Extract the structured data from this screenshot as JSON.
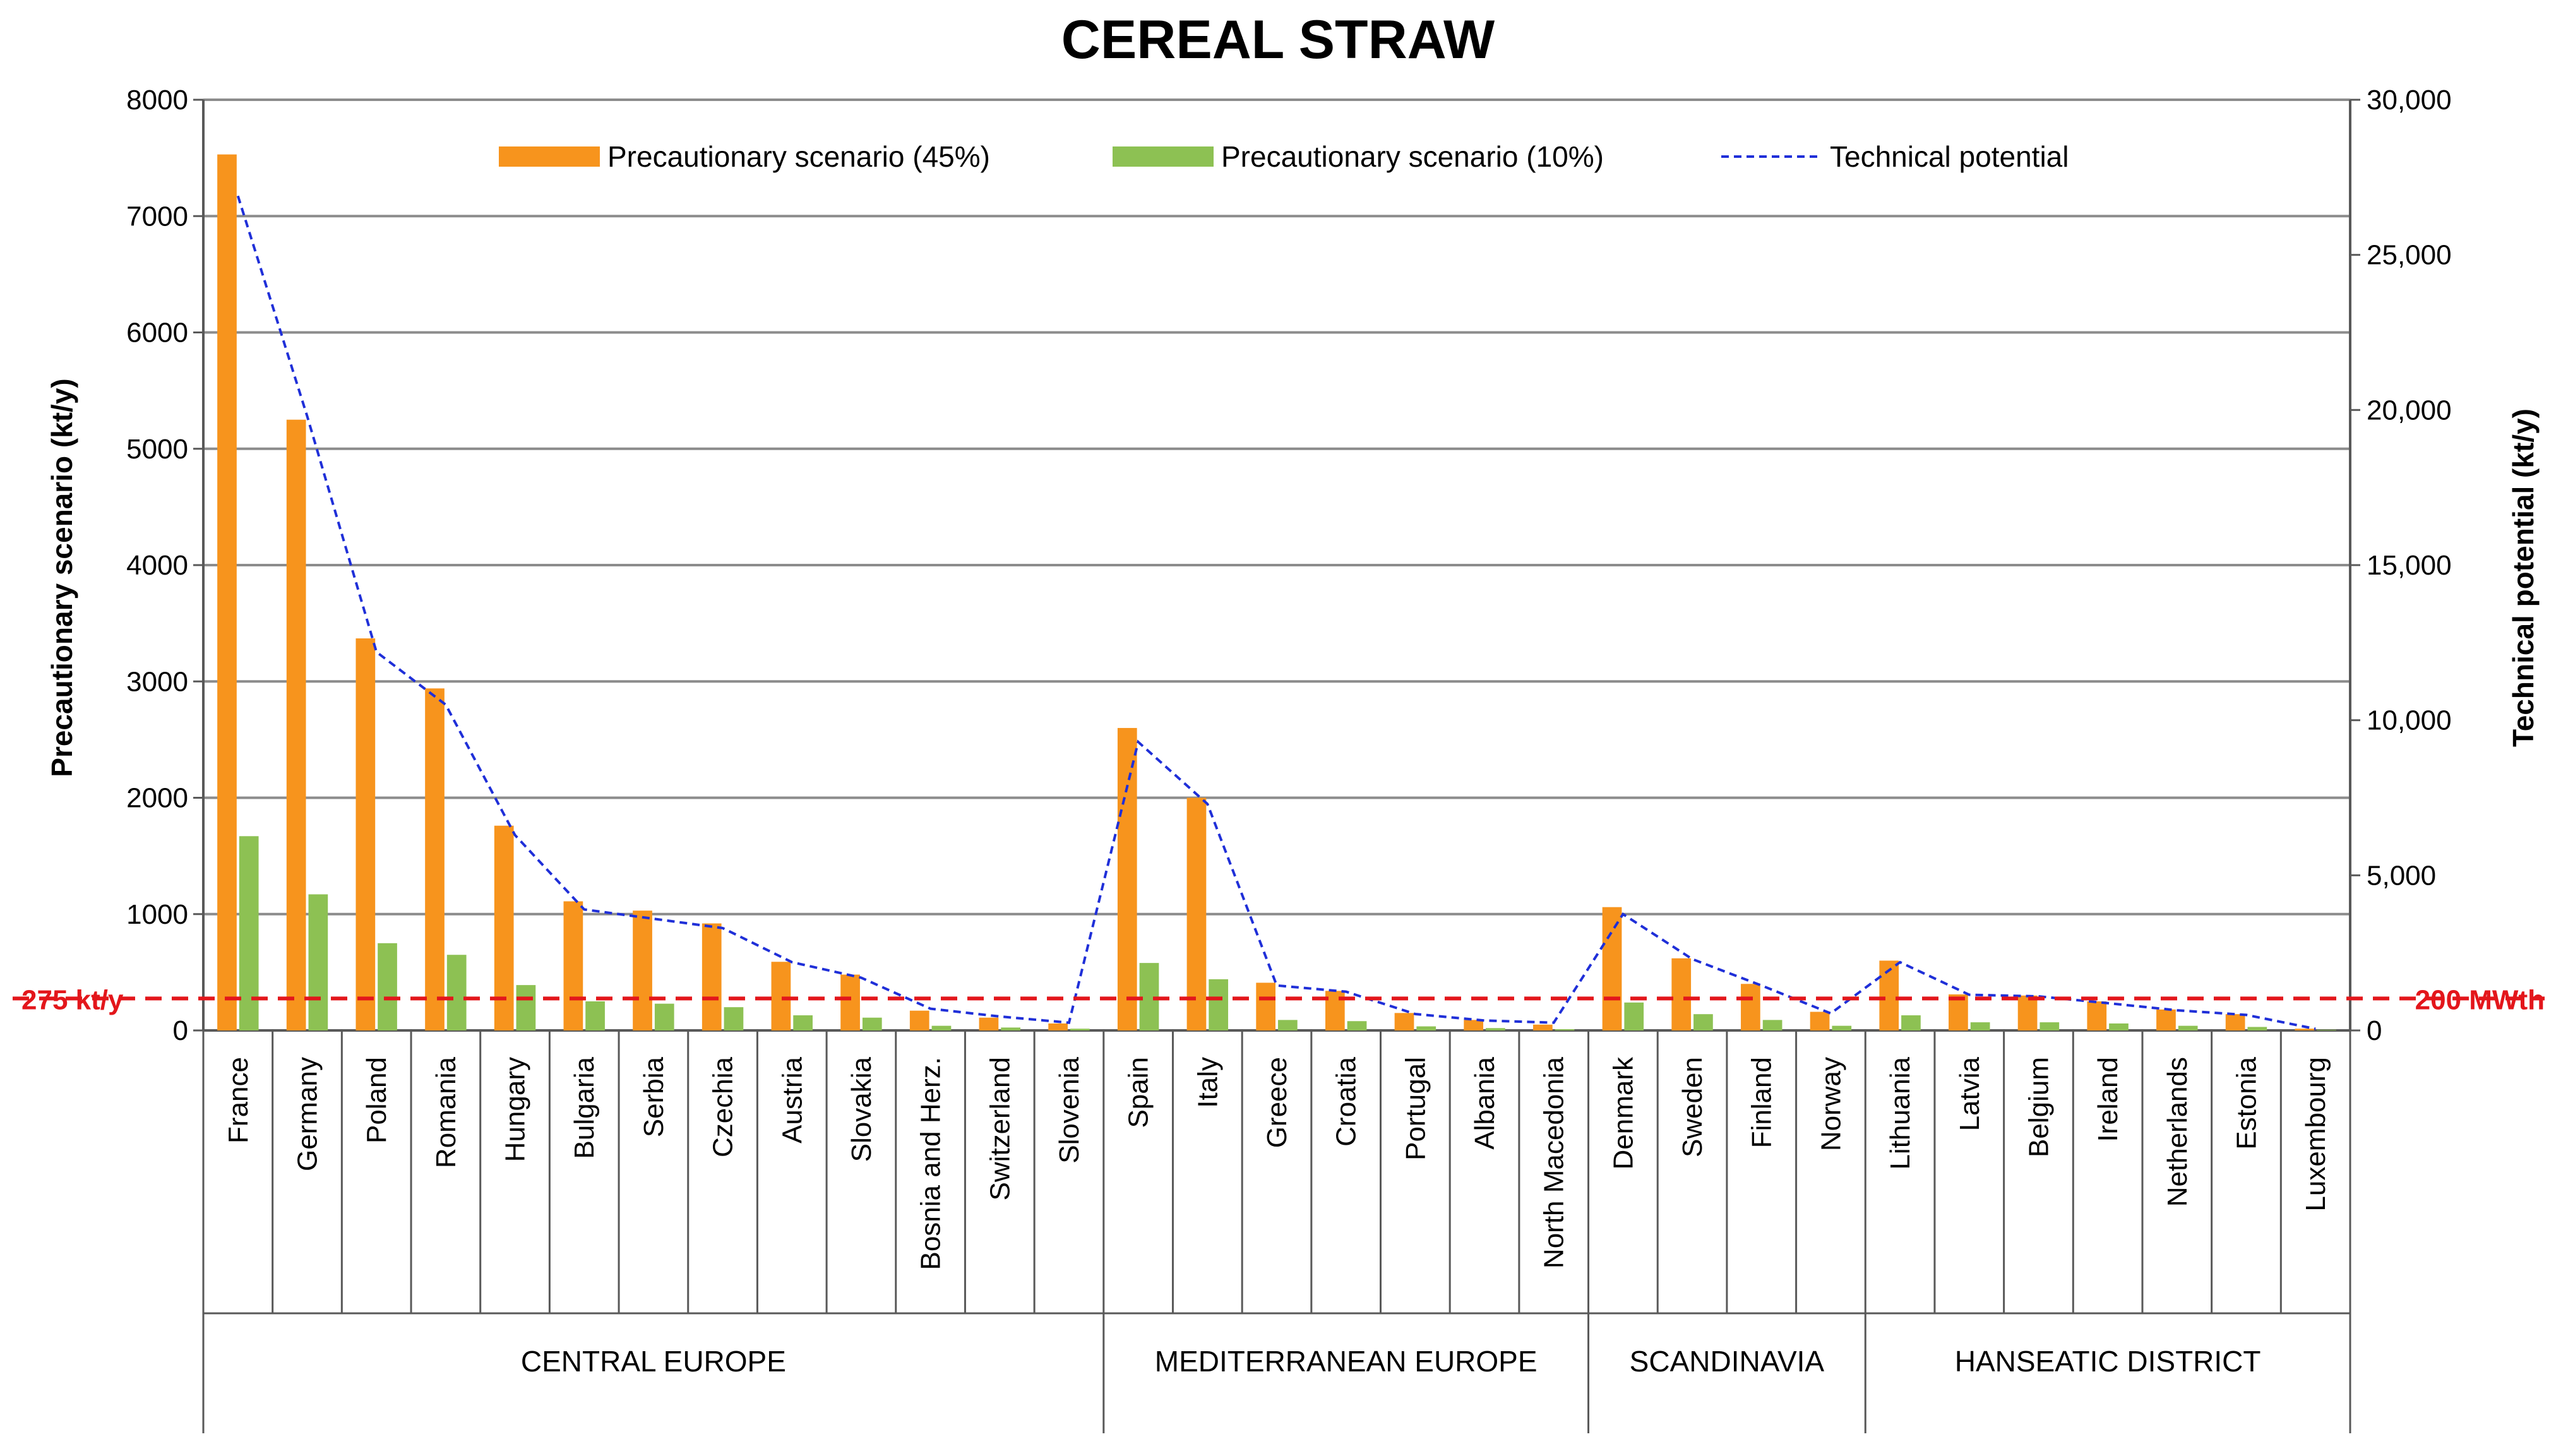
{
  "chart_data": {
    "type": "bar",
    "title": "CEREAL STRAW",
    "ylabel": "Precautionary scenario (kt/y)",
    "y2label": "Technical potential (kt/y)",
    "ylim": [
      0,
      8000
    ],
    "y2lim": [
      0,
      30000
    ],
    "yticks": [
      "0",
      "1000",
      "2000",
      "3000",
      "4000",
      "5000",
      "6000",
      "7000",
      "8000"
    ],
    "y2ticks": [
      "0",
      "5,000",
      "10,000",
      "15,000",
      "20,000",
      "25,000",
      "30,000"
    ],
    "grid": true,
    "legend_position": "top",
    "categories": [
      "France",
      "Germany",
      "Poland",
      "Romania",
      "Hungary",
      "Bulgaria",
      "Serbia",
      "Czechia",
      "Austria",
      "Slovakia",
      "Bosnia and Herz.",
      "Switzerland",
      "Slovenia",
      "Spain",
      "Italy",
      "Greece",
      "Croatia",
      "Portugal",
      "Albania",
      "North Macedonia",
      "Denmark",
      "Sweden",
      "Finland",
      "Norway",
      "Lithuania",
      "Latvia",
      "Belgium",
      "Ireland",
      "Netherlands",
      "Estonia",
      "Luxembourg"
    ],
    "groups": [
      {
        "label": "CENTRAL EUROPE",
        "start": 0,
        "end": 12
      },
      {
        "label": "MEDITERRANEAN EUROPE",
        "start": 13,
        "end": 19
      },
      {
        "label": "SCANDINAVIA",
        "start": 20,
        "end": 23
      },
      {
        "label": "HANSEATIC DISTRICT",
        "start": 24,
        "end": 30
      }
    ],
    "series": [
      {
        "name": "Precautionary scenario (45%)",
        "type": "bar",
        "axis": "left",
        "color": "#f7941d",
        "values": [
          7530,
          5250,
          3370,
          2940,
          1760,
          1110,
          1030,
          920,
          590,
          480,
          170,
          110,
          60,
          2600,
          2000,
          410,
          340,
          150,
          90,
          50,
          1060,
          620,
          400,
          160,
          600,
          310,
          300,
          250,
          180,
          140,
          15
        ]
      },
      {
        "name": "Precautionary scenario (10%)",
        "type": "bar",
        "axis": "left",
        "color": "#8dc153",
        "values": [
          1670,
          1170,
          750,
          650,
          390,
          250,
          230,
          200,
          130,
          110,
          40,
          25,
          15,
          580,
          440,
          90,
          80,
          35,
          20,
          10,
          240,
          140,
          90,
          40,
          130,
          70,
          70,
          60,
          40,
          30,
          5
        ]
      },
      {
        "name": "Technical potential",
        "type": "line",
        "axis": "right",
        "color": "#1f2fd8",
        "values": [
          26900,
          19800,
          12200,
          10500,
          6300,
          3900,
          3600,
          3300,
          2200,
          1700,
          700,
          450,
          250,
          9300,
          7300,
          1450,
          1250,
          530,
          320,
          250,
          3750,
          2300,
          1450,
          550,
          2200,
          1150,
          1100,
          880,
          650,
          500,
          50
        ]
      }
    ],
    "reference_lines": [
      {
        "value": 275,
        "axis": "left",
        "label_left": "275 kt/y",
        "label_right": "200 MWth",
        "color": "#e3161b"
      }
    ]
  }
}
